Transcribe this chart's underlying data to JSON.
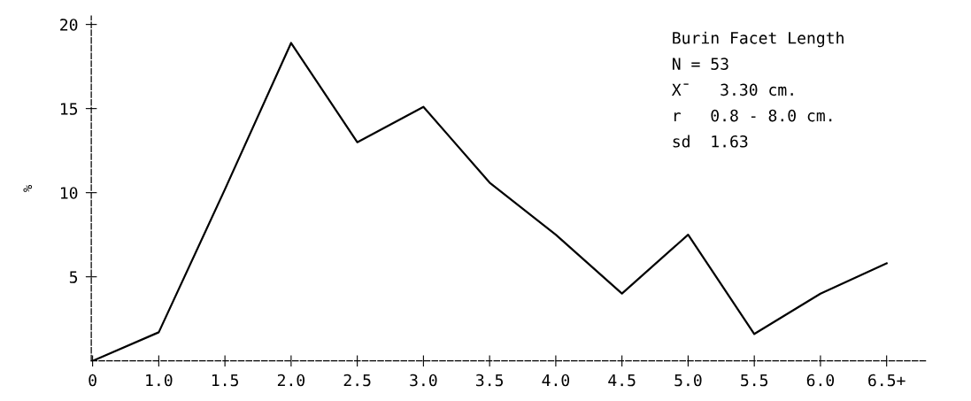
{
  "chart_data": {
    "type": "line",
    "ylabel": "%",
    "categories": [
      "0",
      "1.0",
      "1.5",
      "2.0",
      "2.5",
      "3.0",
      "3.5",
      "4.0",
      "4.5",
      "5.0",
      "5.5",
      "6.0",
      "6.5+"
    ],
    "series": [
      {
        "color": "#000000",
        "values": [
          0,
          1.7,
          10.2,
          18.9,
          13.0,
          15.1,
          10.6,
          7.5,
          4.0,
          7.5,
          1.6,
          4.0,
          5.8
        ]
      }
    ],
    "ylim": [
      0,
      20.5
    ],
    "yticks": [
      5,
      10,
      15,
      20
    ],
    "grid": false,
    "marker": "none",
    "line_style": "solid",
    "annotations": [
      "Burin Facet Length",
      "N = 53",
      "X̄   3.30 cm.",
      "r   0.8 - 8.0 cm.",
      "sd  1.63"
    ]
  }
}
